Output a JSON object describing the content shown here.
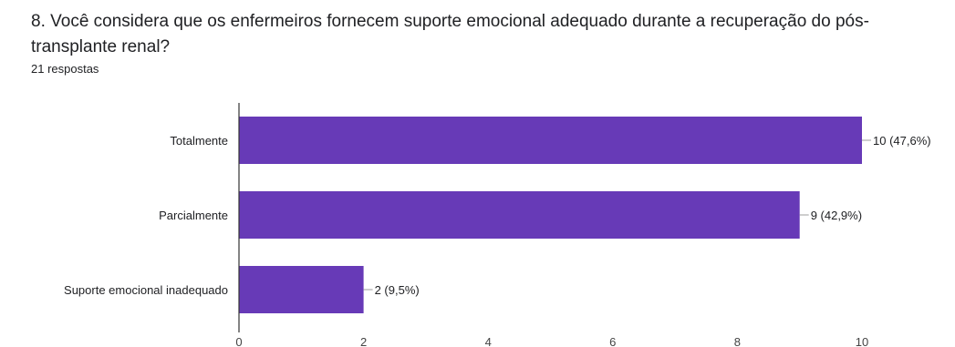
{
  "question": {
    "title": "8. Você considera que os enfermeiros fornecem suporte emocional adequado durante a recuperação do pós-transplante renal?",
    "responses": "21 respostas"
  },
  "colors": {
    "bar": "#673ab7",
    "axis": "#333333",
    "connector": "#9e9e9e"
  },
  "chart_data": {
    "type": "bar",
    "orientation": "horizontal",
    "categories": [
      "Totalmente",
      "Parcialmente",
      "Suporte emocional inadequado"
    ],
    "values": [
      10,
      9,
      2
    ],
    "data_labels": [
      "10 (47,6%)",
      "9 (42,9%)",
      "2 (9,5%)"
    ],
    "xlim": [
      0,
      10
    ],
    "xticks": [
      0,
      2,
      4,
      6,
      8,
      10
    ],
    "grid": false,
    "legend": "none"
  }
}
